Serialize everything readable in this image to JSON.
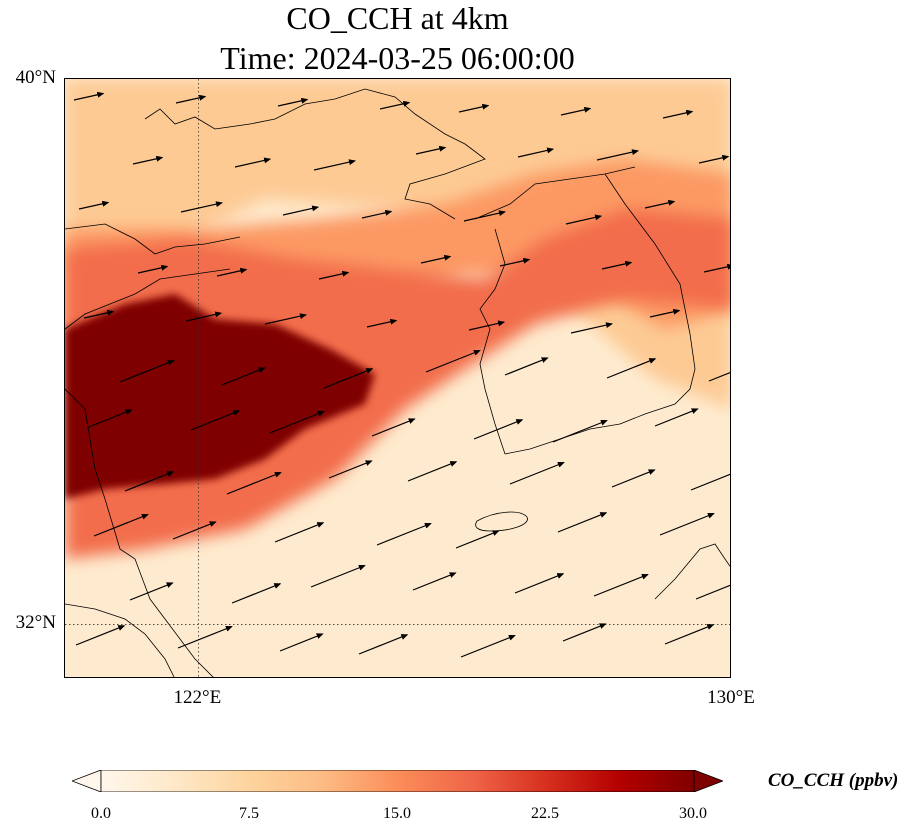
{
  "title": {
    "line1": "CO_CCH at 4km",
    "line2": "Time: 2024-03-25 06:00:00"
  },
  "map": {
    "lat_range": [
      31.2,
      40.0
    ],
    "lon_range": [
      120.0,
      130.0
    ],
    "gridline_lat": 32,
    "gridline_lon": 122
  },
  "axes": {
    "y_ticks": [
      {
        "label": "40°N",
        "lat": 40
      },
      {
        "label": "32°N",
        "lat": 32
      }
    ],
    "x_ticks": [
      {
        "label": "122°E",
        "lon": 122
      },
      {
        "label": "130°E",
        "lon": 130
      }
    ]
  },
  "colorbar": {
    "label": "CO_CCH (ppbv)",
    "min": 0.0,
    "max": 30.0,
    "extend": "both",
    "ticks": [
      "0.0",
      "7.5",
      "15.0",
      "22.5",
      "30.0"
    ],
    "colormap_stops": [
      "#fff7ec",
      "#fee8c8",
      "#fdd49e",
      "#fdbb84",
      "#fc8d59",
      "#ef6548",
      "#d7301f",
      "#b30000",
      "#7f0000"
    ]
  },
  "field_regions": [
    {
      "name": "high",
      "value": 30.0
    },
    {
      "name": "upper",
      "value": 18.0
    },
    {
      "name": "band",
      "value": 14.0
    },
    {
      "name": "north",
      "value": 9.0
    },
    {
      "name": "background",
      "value": 3.0
    }
  ]
}
